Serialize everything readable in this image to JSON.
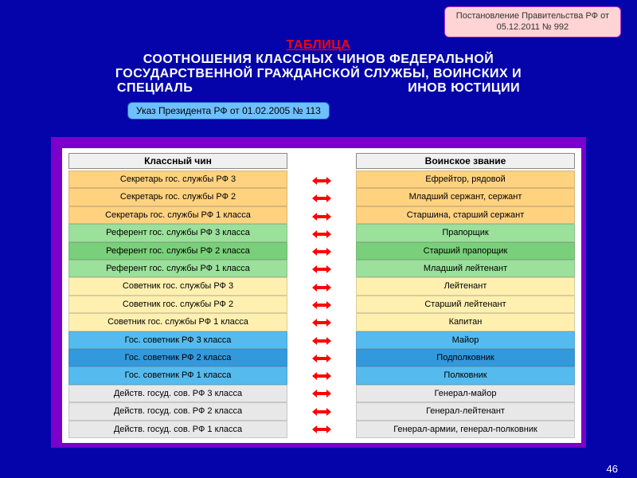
{
  "notice1": {
    "line1": "Постановление Правительства РФ от",
    "line2": "05.12.2011 № 992"
  },
  "title": {
    "word": "ТАБЛИЦА",
    "line1": "СООТНОШЕНИЯ КЛАССНЫХ ЧИНОВ ФЕДЕРАЛЬНОЙ",
    "line2": "ГОСУДАРСТВЕННОЙ ГРАЖДАНСКОЙ СЛУЖБЫ, ВОИНСКИХ И",
    "line3_a": "СПЕЦИАЛЬ",
    "line3_b": "ИНОВ ЮСТИЦИИ"
  },
  "notice2": "Указ Президента РФ от 01.02.2005 № 113",
  "columns": {
    "left_header": "Классный чин",
    "right_header": "Воинское звание"
  },
  "left_rows": [
    "Секретарь гос. службы РФ 3",
    "Секретарь гос. службы РФ 2",
    "Секретарь гос. службы РФ 1 класса",
    "Референт гос. службы РФ 3 класса",
    "Референт гос. службы РФ 2 класса",
    "Референт гос. службы РФ 1 класса",
    "Советник гос. службы РФ 3",
    "Советник гос. службы РФ 2",
    "Советник гос. службы РФ 1 класса",
    "Гос. советник РФ 3 класса",
    "Гос. советник РФ 2 класса",
    "Гос. советник РФ 1 класса",
    "Действ. госуд. сов. РФ 3 класса",
    "Действ. госуд. сов. РФ 2 класса",
    "Действ. госуд. сов. РФ 1 класса"
  ],
  "right_rows": [
    "Ефрейтор, рядовой",
    "Младший сержант, сержант",
    "Старшина, старший сержант",
    "Прапорщик",
    "Старший прапорщик",
    "Младший лейтенант",
    "Лейтенант",
    "Старший лейтенант",
    "Капитан",
    "Майор",
    "Подполковник",
    "Полковник",
    "Генерал-майор",
    "Генерал-лейтенант",
    "Генерал-армии, генерал-полковник"
  ],
  "row_colors": {
    "groups": [
      "g1",
      "g1",
      "g1",
      "g2",
      "g2b",
      "g2",
      "g3",
      "g3",
      "g3",
      "g4",
      "g4b",
      "g4",
      "g5",
      "g5",
      "g5"
    ]
  },
  "arrow_color": "#ff0000",
  "page_number": "46"
}
